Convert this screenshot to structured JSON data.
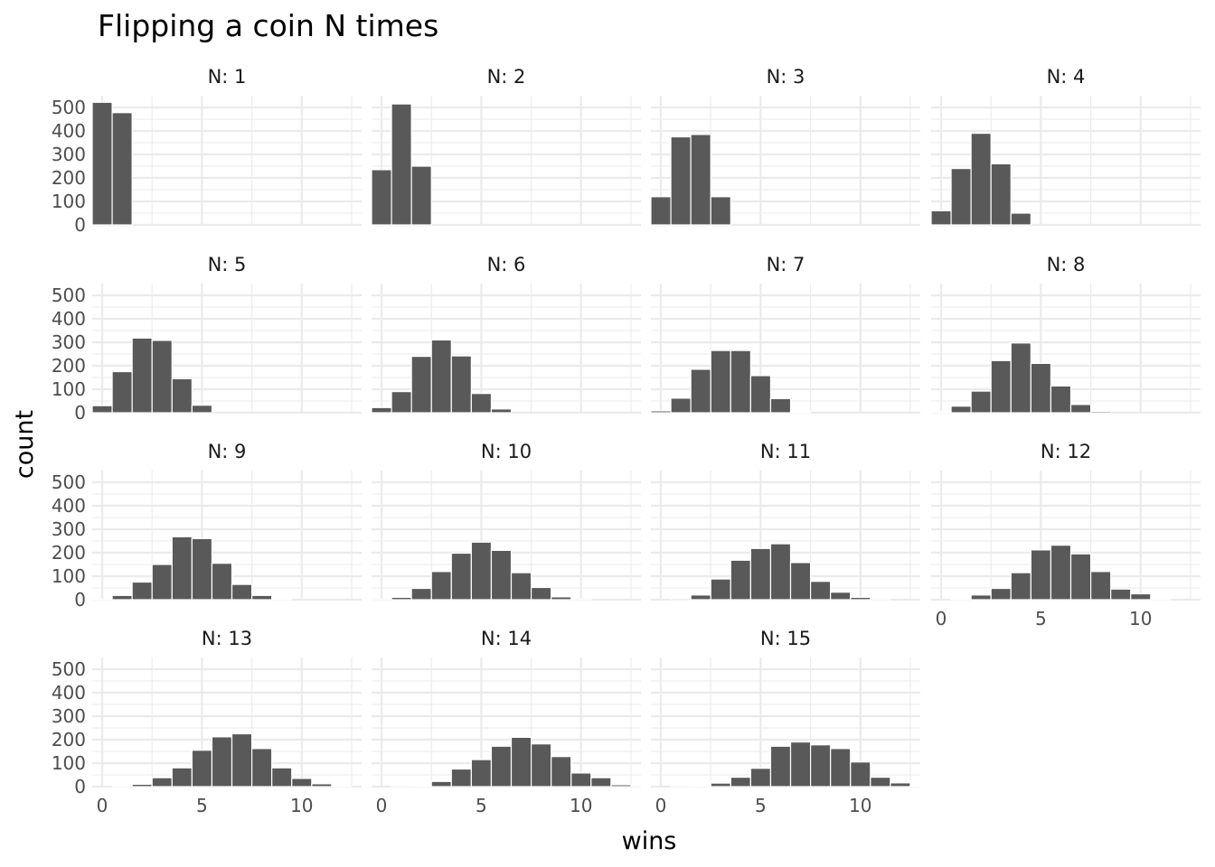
{
  "chart_data": {
    "type": "bar",
    "subtype": "faceted-histogram",
    "title": "Flipping a coin N times",
    "xlabel": "wins",
    "ylabel": "count",
    "xlim": [
      -0.5,
      13
    ],
    "ylim": [
      0,
      550
    ],
    "x_ticks": [
      0,
      5,
      10
    ],
    "y_ticks": [
      0,
      100,
      200,
      300,
      400,
      500
    ],
    "grid": true,
    "facet_columns": 4,
    "facets": [
      {
        "label": "N: 1",
        "values": [
          522,
          478
        ]
      },
      {
        "label": "N: 2",
        "values": [
          235,
          515,
          250
        ]
      },
      {
        "label": "N: 3",
        "values": [
          120,
          375,
          385,
          120
        ]
      },
      {
        "label": "N: 4",
        "values": [
          60,
          240,
          390,
          260,
          50
        ]
      },
      {
        "label": "N: 5",
        "values": [
          30,
          175,
          318,
          308,
          145,
          32
        ]
      },
      {
        "label": "N: 6",
        "values": [
          22,
          90,
          240,
          310,
          242,
          82,
          16
        ]
      },
      {
        "label": "N: 7",
        "values": [
          8,
          62,
          185,
          265,
          265,
          158,
          60,
          4
        ]
      },
      {
        "label": "N: 8",
        "values": [
          4,
          28,
          92,
          222,
          297,
          210,
          114,
          35,
          6
        ]
      },
      {
        "label": "N: 9",
        "values": [
          2,
          18,
          75,
          150,
          268,
          260,
          155,
          65,
          18,
          2
        ]
      },
      {
        "label": "N: 10",
        "values": [
          1,
          10,
          48,
          120,
          198,
          245,
          210,
          115,
          52,
          12,
          1
        ]
      },
      {
        "label": "N: 11",
        "values": [
          0,
          5,
          20,
          88,
          168,
          218,
          238,
          158,
          78,
          32,
          10,
          1
        ]
      },
      {
        "label": "N: 12",
        "values": [
          0,
          3,
          20,
          48,
          115,
          212,
          232,
          195,
          120,
          45,
          25,
          2,
          0
        ]
      },
      {
        "label": "N: 13",
        "values": [
          0,
          2,
          10,
          38,
          80,
          155,
          212,
          225,
          162,
          80,
          35,
          12,
          2,
          0
        ]
      },
      {
        "label": "N: 14",
        "values": [
          0,
          1,
          3,
          22,
          75,
          115,
          172,
          210,
          182,
          128,
          58,
          38,
          8,
          1
        ]
      },
      {
        "label": "N: 15",
        "values": [
          0,
          1,
          4,
          15,
          40,
          78,
          172,
          190,
          178,
          162,
          105,
          40,
          16,
          4
        ]
      }
    ]
  }
}
